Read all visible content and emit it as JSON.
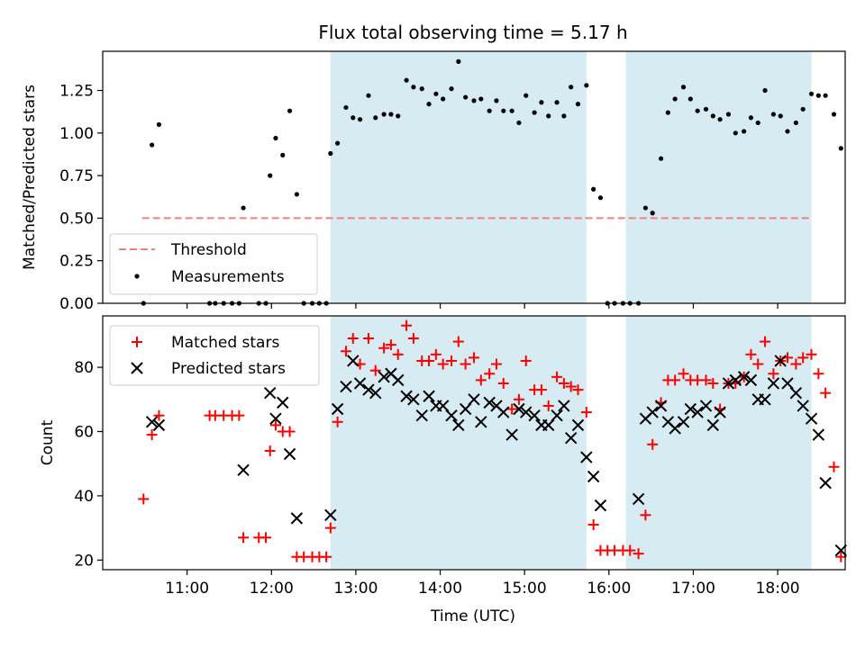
{
  "chart_data": [
    {
      "type": "scatter",
      "title": "Flux total observing time = 5.17 h",
      "xlabel": "",
      "ylabel": "Matched/Predicted stars",
      "ylim": [
        0,
        1.48
      ],
      "xlim": [
        "10:00",
        "18:48"
      ],
      "yticks": [
        "0.00",
        "0.25",
        "0.50",
        "0.75",
        "1.00",
        "1.25"
      ],
      "ytick_values": [
        0,
        0.25,
        0.5,
        0.75,
        1.0,
        1.25
      ],
      "shaded_intervals": [
        [
          "12:42",
          "15:44"
        ],
        [
          "16:12",
          "18:24"
        ]
      ],
      "threshold": {
        "name": "Threshold",
        "value": 0.5,
        "x_range": [
          "10:28",
          "18:24"
        ],
        "color": "#f08080"
      },
      "legend": {
        "placement": "bottom-left",
        "entries": [
          "Threshold",
          "Measurements"
        ]
      },
      "series": [
        {
          "name": "Measurements",
          "marker": "dot",
          "color": "#000000",
          "points": [
            [
              "10:29",
              0.0
            ],
            [
              "10:35",
              0.93
            ],
            [
              "10:40",
              1.05
            ],
            [
              "11:16",
              0.0
            ],
            [
              "11:20",
              0.0
            ],
            [
              "11:26",
              0.0
            ],
            [
              "11:32",
              0.0
            ],
            [
              "11:37",
              0.0
            ],
            [
              "11:40",
              0.56
            ],
            [
              "11:51",
              0.0
            ],
            [
              "11:56",
              0.0
            ],
            [
              "11:59",
              0.75
            ],
            [
              "12:03",
              0.97
            ],
            [
              "12:08",
              0.87
            ],
            [
              "12:13",
              1.13
            ],
            [
              "12:18",
              0.64
            ],
            [
              "12:23",
              0.0
            ],
            [
              "12:29",
              0.0
            ],
            [
              "12:34",
              0.0
            ],
            [
              "12:39",
              0.0
            ],
            [
              "12:42",
              0.88
            ],
            [
              "12:47",
              0.94
            ],
            [
              "12:53",
              1.15
            ],
            [
              "12:58",
              1.09
            ],
            [
              "13:03",
              1.08
            ],
            [
              "13:09",
              1.22
            ],
            [
              "13:14",
              1.09
            ],
            [
              "13:20",
              1.11
            ],
            [
              "13:25",
              1.11
            ],
            [
              "13:30",
              1.1
            ],
            [
              "13:36",
              1.31
            ],
            [
              "13:41",
              1.27
            ],
            [
              "13:47",
              1.26
            ],
            [
              "13:52",
              1.17
            ],
            [
              "13:57",
              1.23
            ],
            [
              "14:02",
              1.2
            ],
            [
              "14:08",
              1.26
            ],
            [
              "14:13",
              1.42
            ],
            [
              "14:18",
              1.21
            ],
            [
              "14:24",
              1.19
            ],
            [
              "14:29",
              1.2
            ],
            [
              "14:35",
              1.13
            ],
            [
              "14:40",
              1.19
            ],
            [
              "14:45",
              1.13
            ],
            [
              "14:51",
              1.13
            ],
            [
              "14:56",
              1.06
            ],
            [
              "15:01",
              1.22
            ],
            [
              "15:07",
              1.12
            ],
            [
              "15:12",
              1.18
            ],
            [
              "15:17",
              1.1
            ],
            [
              "15:23",
              1.18
            ],
            [
              "15:28",
              1.1
            ],
            [
              "15:33",
              1.27
            ],
            [
              "15:38",
              1.17
            ],
            [
              "15:44",
              1.28
            ],
            [
              "15:49",
              0.67
            ],
            [
              "15:54",
              0.62
            ],
            [
              "15:59",
              0.0
            ],
            [
              "16:04",
              0.0
            ],
            [
              "16:10",
              0.0
            ],
            [
              "16:15",
              0.0
            ],
            [
              "16:21",
              0.0
            ],
            [
              "16:26",
              0.56
            ],
            [
              "16:31",
              0.53
            ],
            [
              "16:37",
              0.85
            ],
            [
              "16:42",
              1.12
            ],
            [
              "16:47",
              1.2
            ],
            [
              "16:53",
              1.27
            ],
            [
              "16:58",
              1.2
            ],
            [
              "17:03",
              1.13
            ],
            [
              "17:09",
              1.14
            ],
            [
              "17:14",
              1.1
            ],
            [
              "17:19",
              1.08
            ],
            [
              "17:25",
              1.11
            ],
            [
              "17:30",
              1.0
            ],
            [
              "17:36",
              1.01
            ],
            [
              "17:41",
              1.09
            ],
            [
              "17:46",
              1.06
            ],
            [
              "17:51",
              1.25
            ],
            [
              "17:57",
              1.11
            ],
            [
              "18:02",
              1.1
            ],
            [
              "18:07",
              1.01
            ],
            [
              "18:13",
              1.06
            ],
            [
              "18:18",
              1.14
            ],
            [
              "18:24",
              1.23
            ],
            [
              "18:29",
              1.22
            ],
            [
              "18:34",
              1.22
            ],
            [
              "18:40",
              1.11
            ],
            [
              "18:45",
              0.91
            ]
          ]
        }
      ]
    },
    {
      "type": "scatter",
      "xlabel": "Time (UTC)",
      "ylabel": "Count",
      "ylim": [
        17,
        96
      ],
      "xlim": [
        "10:00",
        "18:48"
      ],
      "xticks": [
        "11:00",
        "12:00",
        "13:00",
        "14:00",
        "15:00",
        "16:00",
        "17:00",
        "18:00"
      ],
      "yticks": [
        "20",
        "40",
        "60",
        "80"
      ],
      "ytick_values": [
        20,
        40,
        60,
        80
      ],
      "shaded_intervals": [
        [
          "12:42",
          "15:44"
        ],
        [
          "16:12",
          "18:24"
        ]
      ],
      "legend": {
        "placement": "top-left",
        "entries": [
          "Matched stars",
          "Predicted stars"
        ]
      },
      "series": [
        {
          "name": "Matched stars",
          "marker": "plus",
          "color": "#ff0000",
          "points": [
            [
              "10:29",
              39
            ],
            [
              "10:35",
              59
            ],
            [
              "10:40",
              65
            ],
            [
              "11:16",
              65
            ],
            [
              "11:20",
              65
            ],
            [
              "11:26",
              65
            ],
            [
              "11:32",
              65
            ],
            [
              "11:37",
              65
            ],
            [
              "11:40",
              27
            ],
            [
              "11:51",
              27
            ],
            [
              "11:56",
              27
            ],
            [
              "11:59",
              54
            ],
            [
              "12:03",
              62
            ],
            [
              "12:08",
              60
            ],
            [
              "12:13",
              60
            ],
            [
              "12:18",
              21
            ],
            [
              "12:23",
              21
            ],
            [
              "12:29",
              21
            ],
            [
              "12:34",
              21
            ],
            [
              "12:39",
              21
            ],
            [
              "12:42",
              30
            ],
            [
              "12:47",
              63
            ],
            [
              "12:53",
              85
            ],
            [
              "12:58",
              89
            ],
            [
              "13:03",
              81
            ],
            [
              "13:09",
              89
            ],
            [
              "13:14",
              79
            ],
            [
              "13:20",
              86
            ],
            [
              "13:25",
              87
            ],
            [
              "13:30",
              84
            ],
            [
              "13:36",
              93
            ],
            [
              "13:41",
              89
            ],
            [
              "13:47",
              82
            ],
            [
              "13:52",
              82
            ],
            [
              "13:57",
              84
            ],
            [
              "14:02",
              81
            ],
            [
              "14:08",
              82
            ],
            [
              "14:13",
              88
            ],
            [
              "14:18",
              81
            ],
            [
              "14:24",
              83
            ],
            [
              "14:29",
              76
            ],
            [
              "14:35",
              78
            ],
            [
              "14:40",
              81
            ],
            [
              "14:45",
              75
            ],
            [
              "14:51",
              67
            ],
            [
              "14:56",
              70
            ],
            [
              "15:01",
              82
            ],
            [
              "15:07",
              73
            ],
            [
              "15:12",
              73
            ],
            [
              "15:17",
              68
            ],
            [
              "15:23",
              77
            ],
            [
              "15:28",
              75
            ],
            [
              "15:33",
              74
            ],
            [
              "15:38",
              73
            ],
            [
              "15:44",
              66
            ],
            [
              "15:49",
              31
            ],
            [
              "15:54",
              23
            ],
            [
              "15:59",
              23
            ],
            [
              "16:04",
              23
            ],
            [
              "16:10",
              23
            ],
            [
              "16:15",
              23
            ],
            [
              "16:21",
              22
            ],
            [
              "16:26",
              34
            ],
            [
              "16:31",
              56
            ],
            [
              "16:37",
              69
            ],
            [
              "16:42",
              76
            ],
            [
              "16:47",
              76
            ],
            [
              "16:53",
              78
            ],
            [
              "16:58",
              76
            ],
            [
              "17:03",
              76
            ],
            [
              "17:09",
              76
            ],
            [
              "17:14",
              75
            ],
            [
              "17:19",
              67
            ],
            [
              "17:25",
              75
            ],
            [
              "17:30",
              75
            ],
            [
              "17:36",
              77
            ],
            [
              "17:41",
              84
            ],
            [
              "17:46",
              81
            ],
            [
              "17:51",
              88
            ],
            [
              "17:57",
              78
            ],
            [
              "18:02",
              82
            ],
            [
              "18:07",
              83
            ],
            [
              "18:13",
              81
            ],
            [
              "18:18",
              83
            ],
            [
              "18:24",
              84
            ],
            [
              "18:29",
              78
            ],
            [
              "18:34",
              72
            ],
            [
              "18:40",
              49
            ],
            [
              "18:45",
              21
            ]
          ]
        },
        {
          "name": "Predicted stars",
          "marker": "x",
          "color": "#000000",
          "points": [
            [
              "10:35",
              63
            ],
            [
              "10:40",
              62
            ],
            [
              "11:40",
              48
            ],
            [
              "11:59",
              72
            ],
            [
              "12:03",
              64
            ],
            [
              "12:08",
              69
            ],
            [
              "12:13",
              53
            ],
            [
              "12:18",
              33
            ],
            [
              "12:42",
              34
            ],
            [
              "12:47",
              67
            ],
            [
              "12:53",
              74
            ],
            [
              "12:58",
              82
            ],
            [
              "13:03",
              75
            ],
            [
              "13:09",
              73
            ],
            [
              "13:14",
              72
            ],
            [
              "13:20",
              77
            ],
            [
              "13:25",
              78
            ],
            [
              "13:30",
              76
            ],
            [
              "13:36",
              71
            ],
            [
              "13:41",
              70
            ],
            [
              "13:47",
              65
            ],
            [
              "13:52",
              71
            ],
            [
              "13:57",
              68
            ],
            [
              "14:02",
              68
            ],
            [
              "14:08",
              65
            ],
            [
              "14:13",
              62
            ],
            [
              "14:18",
              67
            ],
            [
              "14:24",
              70
            ],
            [
              "14:29",
              63
            ],
            [
              "14:35",
              69
            ],
            [
              "14:40",
              68
            ],
            [
              "14:45",
              66
            ],
            [
              "14:51",
              59
            ],
            [
              "14:56",
              67
            ],
            [
              "15:01",
              66
            ],
            [
              "15:07",
              65
            ],
            [
              "15:12",
              62
            ],
            [
              "15:17",
              62
            ],
            [
              "15:23",
              65
            ],
            [
              "15:28",
              68
            ],
            [
              "15:33",
              58
            ],
            [
              "15:38",
              62
            ],
            [
              "15:44",
              52
            ],
            [
              "15:49",
              46
            ],
            [
              "15:54",
              37
            ],
            [
              "16:21",
              39
            ],
            [
              "16:26",
              64
            ],
            [
              "16:31",
              66
            ],
            [
              "16:37",
              68
            ],
            [
              "16:42",
              63
            ],
            [
              "16:47",
              61
            ],
            [
              "16:53",
              63
            ],
            [
              "16:58",
              67
            ],
            [
              "17:03",
              66
            ],
            [
              "17:09",
              68
            ],
            [
              "17:14",
              62
            ],
            [
              "17:19",
              66
            ],
            [
              "17:25",
              75
            ],
            [
              "17:30",
              76
            ],
            [
              "17:36",
              77
            ],
            [
              "17:41",
              76
            ],
            [
              "17:46",
              70
            ],
            [
              "17:51",
              70
            ],
            [
              "17:57",
              75
            ],
            [
              "18:02",
              82
            ],
            [
              "18:07",
              75
            ],
            [
              "18:13",
              72
            ],
            [
              "18:18",
              68
            ],
            [
              "18:24",
              64
            ],
            [
              "18:29",
              59
            ],
            [
              "18:34",
              44
            ],
            [
              "18:45",
              23
            ]
          ]
        }
      ]
    }
  ],
  "colors": {
    "shade": "#add8e6",
    "threshold": "#f08080",
    "matched": "#ff0000",
    "predicted": "#000000",
    "measurements": "#000000"
  }
}
